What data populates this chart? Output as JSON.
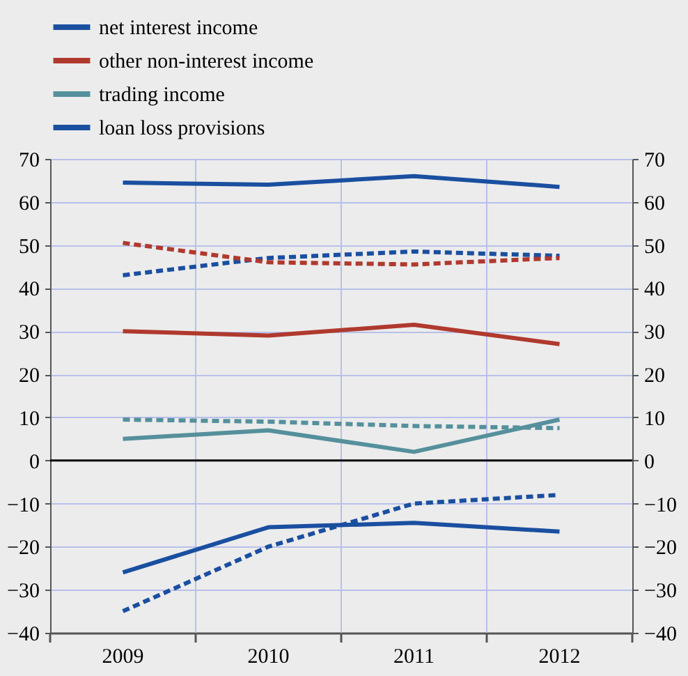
{
  "chart_data": {
    "type": "line",
    "categories": [
      "2009",
      "2010",
      "2011",
      "2012"
    ],
    "series": [
      {
        "name": "net interest income",
        "color": "#1a4fa0",
        "line_style": "solid",
        "values": [
          64.5,
          64,
          66,
          63.5
        ]
      },
      {
        "name": "other non-interest income",
        "color": "#b0392e",
        "line_style": "solid",
        "values": [
          30,
          29,
          31.5,
          27
        ]
      },
      {
        "name": "trading income",
        "color": "#55909c",
        "line_style": "solid",
        "values": [
          5,
          7,
          2,
          9.5
        ]
      },
      {
        "name": "loan loss provisions",
        "color": "#1a4fa0",
        "line_style": "solid",
        "values": [
          -26,
          -15.5,
          -14.5,
          -16.5
        ]
      },
      {
        "color": "#1a4fa0",
        "line_style": "dashed",
        "values": [
          43,
          47,
          48.5,
          47.5
        ]
      },
      {
        "color": "#b0392e",
        "line_style": "dashed",
        "values": [
          50.5,
          46,
          45.5,
          47
        ]
      },
      {
        "color": "#55909c",
        "line_style": "dashed",
        "values": [
          9.5,
          9,
          8,
          7.5
        ]
      },
      {
        "color": "#1a4fa0",
        "line_style": "dashed",
        "values": [
          -35,
          -20,
          -10,
          -8
        ]
      }
    ],
    "ylim": [
      -40,
      70
    ],
    "yticks": [
      -40,
      -30,
      -20,
      -10,
      0,
      10,
      20,
      30,
      40,
      50,
      60,
      70
    ],
    "y2lim": [
      -40,
      70
    ],
    "y2ticks": [
      -40,
      -30,
      -20,
      -10,
      0,
      10,
      20,
      30,
      40,
      50,
      60,
      70
    ],
    "ref_lines": [
      {
        "axis": "y",
        "value": 0,
        "color": "#000000"
      }
    ],
    "grid": true,
    "legend": "top left",
    "marker": "none"
  }
}
